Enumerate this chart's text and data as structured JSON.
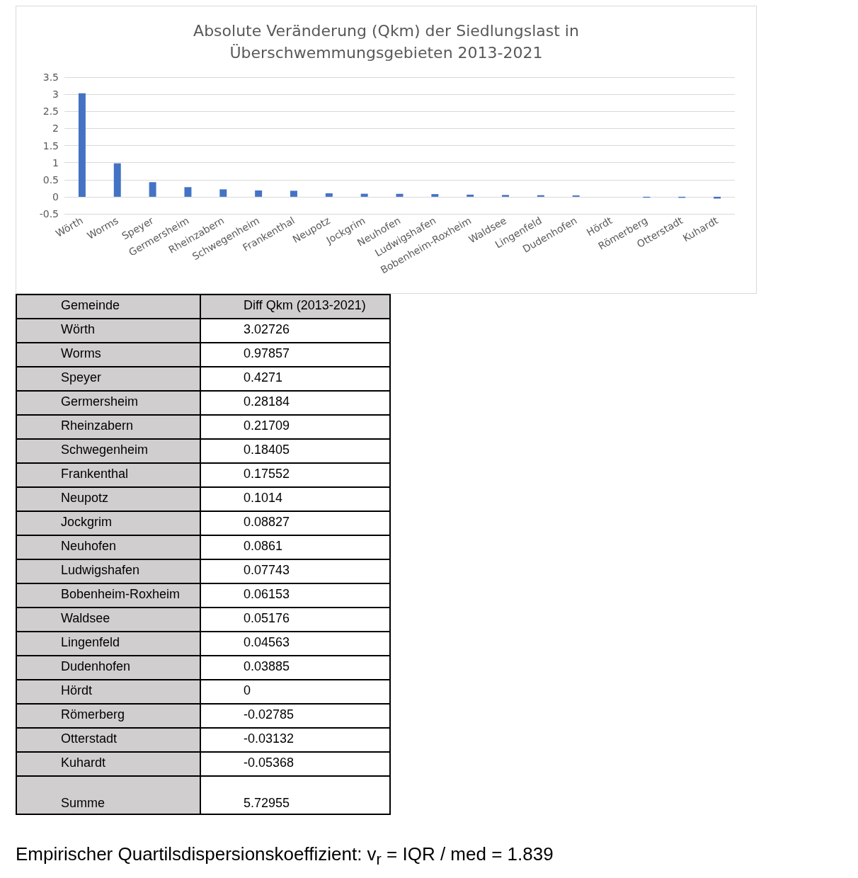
{
  "chart_data": [
    {
      "type": "bar",
      "title": "Absolute Veränderung (Qkm) der Siedlungslast in\nÜberschwemmungsgebieten 2013-2021",
      "categories": [
        "Wörth",
        "Worms",
        "Speyer",
        "Germersheim",
        "Rheinzabern",
        "Schwegenheim",
        "Frankenthal",
        "Neupotz",
        "Jockgrim",
        "Neuhofen",
        "Ludwigshafen",
        "Bobenheim-Roxheim",
        "Waldsee",
        "Lingenfeld",
        "Dudenhofen",
        "Hördt",
        "Römerberg",
        "Otterstadt",
        "Kuhardt"
      ],
      "values": [
        3.02726,
        0.97857,
        0.4271,
        0.28184,
        0.21709,
        0.18405,
        0.17552,
        0.1014,
        0.08827,
        0.0861,
        0.07743,
        0.06153,
        0.05176,
        0.04563,
        0.03885,
        0,
        -0.02785,
        -0.03132,
        -0.05368
      ],
      "color": "#4472c4",
      "ylim": [
        -0.5,
        3.5
      ],
      "yticks": [
        -0.5,
        0,
        0.5,
        1,
        1.5,
        2,
        2.5,
        3,
        3.5
      ],
      "grid": "y"
    },
    {
      "type": "other",
      "annotations": [
        "Gemeinde",
        "Diff Qkm (2013-2021)",
        "Wörth",
        "3.02726",
        "Worms",
        "0.97857",
        "Speyer",
        "0.4271",
        "Germersheim",
        "0.28184",
        "Rheinzabern",
        "0.21709",
        "Schwegenheim",
        "0.18405",
        "Frankenthal",
        "0.17552",
        "Neupotz",
        "0.1014",
        "Jockgrim",
        "0.08827",
        "Neuhofen",
        "0.0861",
        "Ludwigshafen",
        "0.07743",
        "Bobenheim-Roxheim",
        "0.06153",
        "Waldsee",
        "0.05176",
        "Lingenfeld",
        "0.04563",
        "Dudenhofen",
        "0.03885",
        "Hördt",
        "0",
        "Römerberg",
        "-0.02785",
        "Otterstadt",
        "-0.03132",
        "Kuhardt",
        "-0.05368",
        "Summe",
        "5.72955"
      ]
    },
    {
      "type": "other",
      "annotations": [
        "Empirischer Quartilsdispersionskoeffizient: v$_{r}$ = IQR / med = 1.839"
      ]
    }
  ]
}
